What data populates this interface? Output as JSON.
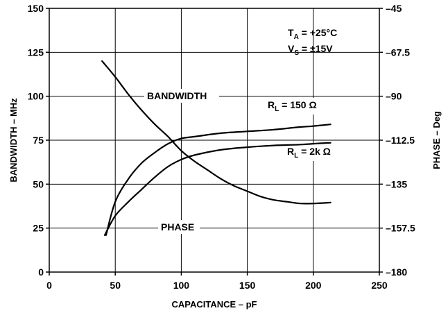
{
  "chart_data": {
    "type": "line",
    "xlabel": "CAPACITANCE – pF",
    "ylabel": "BANDWIDTH – MHz",
    "y2label": "PHASE – Deg",
    "xlim": [
      0,
      250
    ],
    "ylim": [
      0,
      150
    ],
    "y2lim": [
      -180,
      -45
    ],
    "x_ticks": [
      "0",
      "50",
      "100",
      "150",
      "200",
      "250"
    ],
    "y_ticks": [
      "0",
      "25",
      "50",
      "75",
      "100",
      "125",
      "150"
    ],
    "y2_ticks": [
      "–180",
      "–157.5",
      "–135",
      "–112.5",
      "–90",
      "–67.5",
      "–45"
    ],
    "grid": true,
    "conditions": {
      "ta": "T",
      "ta_sub": "A",
      "ta_val": " = +25°C",
      "vs": "V",
      "vs_sub": "S",
      "vs_val": " = ±15V"
    },
    "labels": {
      "bandwidth": "BANDWIDTH",
      "phase": "PHASE",
      "rl150": {
        "main": "R",
        "sub": "L",
        "val": " = 150 Ω"
      },
      "rl2k": {
        "main": "R",
        "sub": "L",
        "val": " = 2k Ω"
      }
    },
    "series": [
      {
        "x": [
          40,
          50,
          60,
          70,
          80,
          90,
          100,
          110,
          120,
          130,
          140,
          150,
          160,
          170,
          180,
          190,
          200,
          213
        ],
        "y": [
          120,
          111,
          101,
          92,
          84,
          77,
          69,
          63,
          58,
          53,
          49,
          46,
          43,
          41,
          40,
          39,
          39,
          39.5
        ]
      },
      {
        "x": [
          43,
          50,
          60,
          70,
          80,
          90,
          100,
          110,
          130,
          150,
          170,
          190,
          200,
          213
        ],
        "y": [
          21,
          40,
          53,
          62,
          68,
          73,
          76,
          77,
          79,
          80,
          81,
          82.5,
          83,
          84
        ]
      },
      {
        "x": [
          42,
          50,
          60,
          70,
          80,
          90,
          100,
          110,
          130,
          150,
          170,
          190,
          200,
          213
        ],
        "y": [
          21,
          32,
          40,
          47,
          54,
          60,
          64,
          66.5,
          69.5,
          71,
          72,
          72.5,
          73,
          73.5
        ]
      }
    ]
  }
}
